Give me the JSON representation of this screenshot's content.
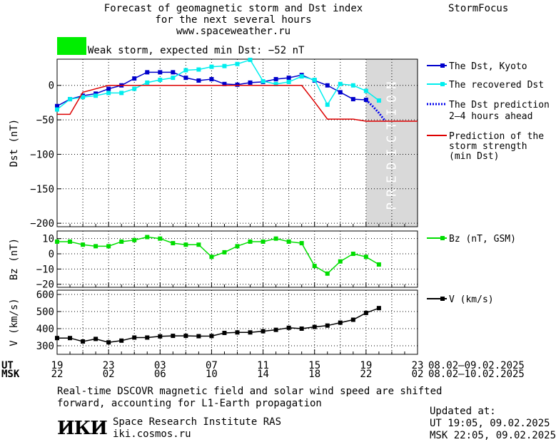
{
  "header": {
    "title_line1": "Forecast of geomagnetic storm and Dst index",
    "title_line2": "for the next several hours",
    "website": "www.spaceweather.ru",
    "brand": "StormFocus",
    "storm_text": "Weak storm, expected min Dst: −52 nT",
    "storm_color": "#00ee00"
  },
  "footer": {
    "ut_label": "UT",
    "msk_label": "MSK",
    "ut_ticks": [
      "19",
      "23",
      "03",
      "07",
      "11",
      "15",
      "19",
      "23"
    ],
    "msk_ticks": [
      "22",
      "02",
      "06",
      "10",
      "14",
      "18",
      "22",
      "02"
    ],
    "ut_range": "08.02–09.02.2025",
    "msk_range": "08.02–10.02.2025",
    "note_line1": "Real-time DSCOVR magnetic field and solar wind speed are shifted",
    "note_line2": "forward, accounting for L1-Earth propagation",
    "logo": "ИКИ",
    "institute": "Space Research Institute RAS",
    "institute_site": "iki.cosmos.ru",
    "updated_label": "Updated at:",
    "updated_ut": "UT  19:05, 09.02.2025",
    "updated_msk": "MSK 22:05, 09.02.2025"
  },
  "chart_data": [
    {
      "type": "line",
      "panel": "dst",
      "ylabel": "Dst (nT)",
      "ylim": [
        -205,
        38
      ],
      "yticks": [
        0,
        -50,
        -100,
        -150,
        -200
      ],
      "xlim": [
        0,
        28
      ],
      "prediction_region": [
        24,
        28
      ],
      "prediction_label": "PREDICTION",
      "series": [
        {
          "name": "The Dst, Kyoto",
          "color": "#0000cc",
          "style": "line-square",
          "x": [
            0,
            1,
            2,
            3,
            4,
            5,
            6,
            7,
            8,
            9,
            10,
            11,
            12,
            13,
            14,
            15,
            16,
            17,
            18,
            19,
            20,
            21,
            22,
            23,
            24
          ],
          "y": [
            -30,
            -20,
            -15,
            -12,
            -5,
            0,
            10,
            19,
            19,
            19,
            11,
            7,
            9,
            2,
            1,
            4,
            5,
            9,
            11,
            15,
            7,
            0,
            -10,
            -20,
            -21
          ]
        },
        {
          "name": "The recovered Dst",
          "color": "#00eeee",
          "style": "line-square",
          "x": [
            0,
            1,
            2,
            3,
            4,
            5,
            6,
            7,
            8,
            9,
            10,
            11,
            12,
            13,
            14,
            15,
            16,
            17,
            18,
            19,
            20,
            21,
            22,
            23,
            24,
            25
          ],
          "y": [
            -35,
            -20,
            -17,
            -15,
            -11,
            -11,
            -5,
            4,
            8,
            11,
            22,
            23,
            27,
            28,
            31,
            37,
            6,
            2,
            5,
            13,
            8,
            -28,
            2,
            0,
            -8,
            -22
          ]
        },
        {
          "name": "The Dst prediction\n2–4 hours ahead",
          "color": "#0000ee",
          "style": "dotted",
          "x": [
            24,
            24.5,
            25,
            25.5
          ],
          "y": [
            -21,
            -30,
            -40,
            -52
          ]
        },
        {
          "name": "Prediction of the\nstorm strength\n(min Dst)",
          "color": "#dd0000",
          "style": "line",
          "x": [
            0,
            1,
            2,
            3,
            4,
            5,
            6,
            7,
            8,
            9,
            10,
            11,
            12,
            13,
            14,
            15,
            16,
            17,
            18,
            19,
            20,
            21,
            22,
            23,
            24,
            25,
            26,
            27,
            28
          ],
          "y": [
            -42,
            -42,
            -10,
            -5,
            0,
            0,
            0,
            0,
            0,
            0,
            0,
            0,
            0,
            0,
            0,
            0,
            0,
            0,
            0,
            0,
            -24,
            -49,
            -49,
            -49,
            -52,
            -52,
            -52,
            -52,
            -52
          ]
        }
      ]
    },
    {
      "type": "line",
      "panel": "bz",
      "ylabel": "Bz (nT)",
      "ylim": [
        -22,
        15
      ],
      "yticks": [
        10,
        0,
        -10,
        -20
      ],
      "xlim": [
        0,
        28
      ],
      "series": [
        {
          "name": "Bz (nT, GSM)",
          "color": "#00dd00",
          "style": "line-square",
          "x": [
            0,
            1,
            2,
            3,
            4,
            5,
            6,
            7,
            8,
            9,
            10,
            11,
            12,
            13,
            14,
            15,
            16,
            17,
            18,
            19,
            20,
            21,
            22,
            23,
            24,
            25
          ],
          "y": [
            8,
            8,
            6,
            5,
            5,
            8,
            9,
            11,
            10,
            7,
            6,
            6,
            -2,
            1,
            5,
            8,
            8,
            10,
            8,
            7,
            -8,
            -13,
            -5,
            0,
            -2,
            -7
          ]
        }
      ]
    },
    {
      "type": "line",
      "panel": "v",
      "ylabel": "V (km/s)",
      "ylim": [
        250,
        625
      ],
      "yticks": [
        300,
        400,
        500,
        600
      ],
      "xlim": [
        0,
        28
      ],
      "series": [
        {
          "name": "V (km/s)",
          "color": "#000000",
          "style": "line-square",
          "x": [
            0,
            1,
            2,
            3,
            4,
            5,
            6,
            7,
            8,
            9,
            10,
            11,
            12,
            13,
            14,
            15,
            16,
            17,
            18,
            19,
            20,
            21,
            22,
            23,
            24,
            25
          ],
          "y": [
            345,
            345,
            325,
            340,
            320,
            330,
            348,
            348,
            355,
            358,
            358,
            356,
            357,
            375,
            378,
            378,
            385,
            393,
            405,
            400,
            410,
            418,
            435,
            452,
            492,
            520
          ]
        }
      ]
    }
  ]
}
